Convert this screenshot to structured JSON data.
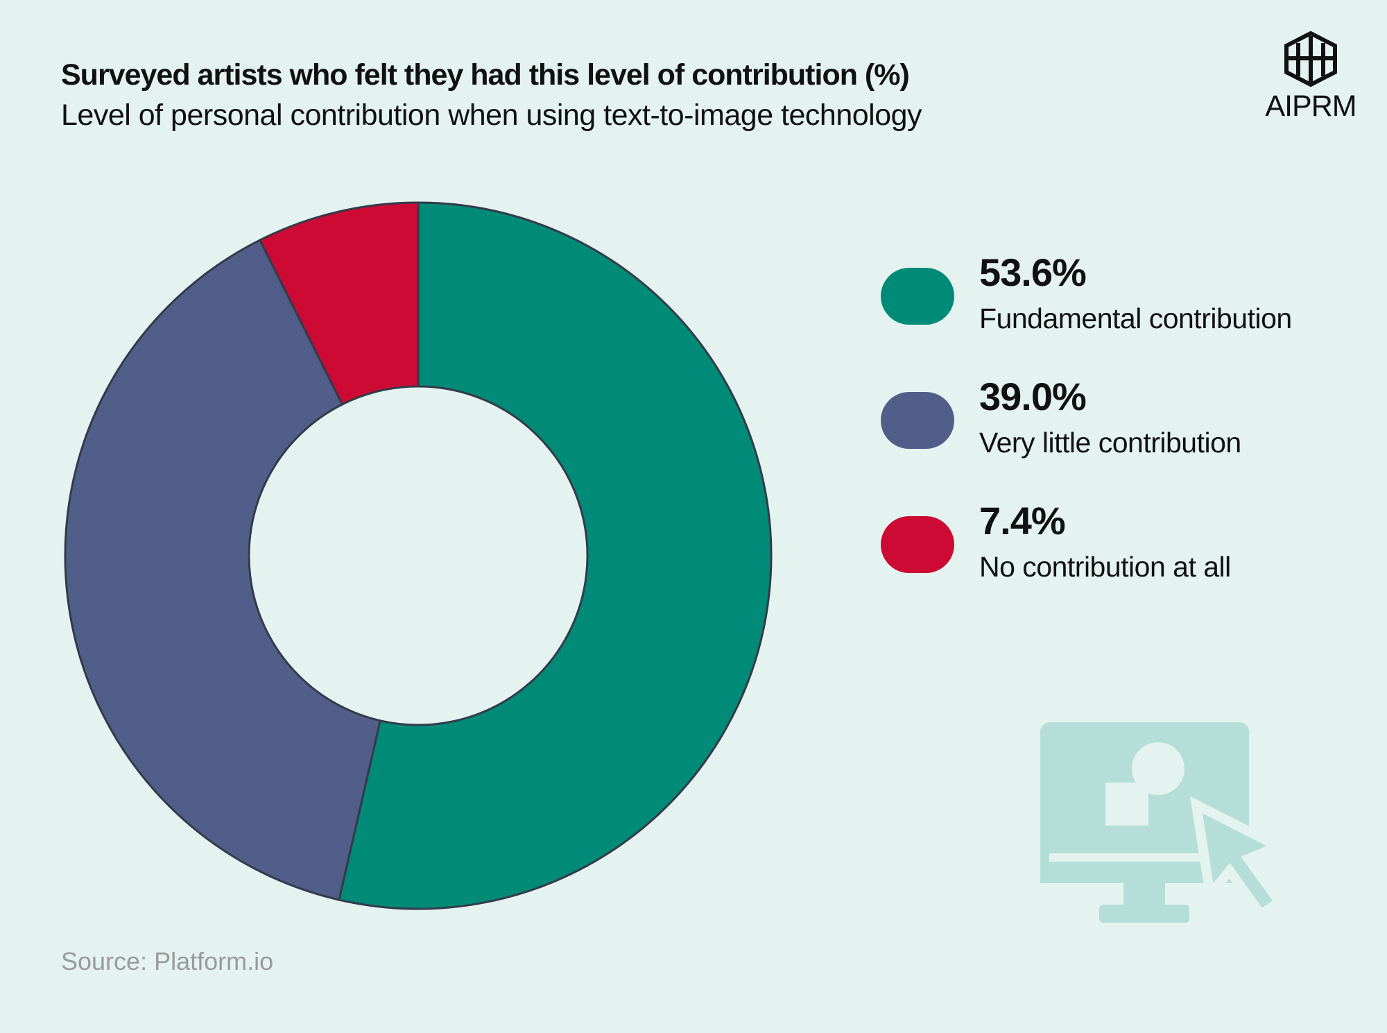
{
  "chart_data": {
    "type": "pie",
    "title": "Surveyed artists who felt they had this level of contribution (%)",
    "subtitle": "Level of personal contribution when using text-to-image technology",
    "source": "Source: Platform.io",
    "categories": [
      "Fundamental contribution",
      "Very little contribution",
      "No contribution at all"
    ],
    "values": [
      53.6,
      39.0,
      7.4
    ],
    "value_labels": [
      "53.6%",
      "39.0%",
      "7.4%"
    ],
    "colors": [
      "#008a78",
      "#525e8a",
      "#cc0a33"
    ]
  },
  "logo": "AIPRM"
}
